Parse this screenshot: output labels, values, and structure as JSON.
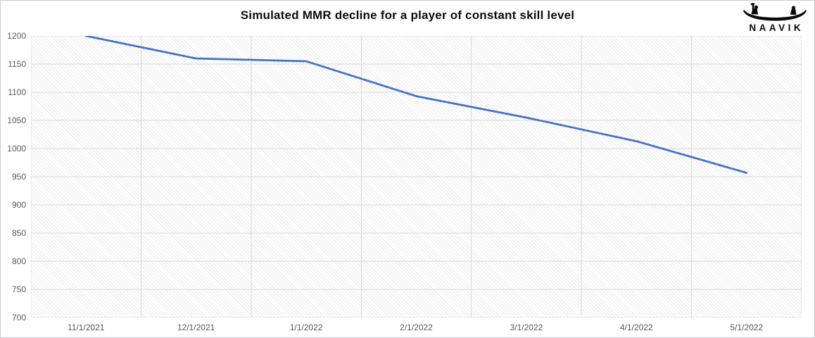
{
  "header": {
    "brand": "NAAVIK"
  },
  "chart_data": {
    "type": "line",
    "title": "Simulated MMR decline for a player of constant skill level",
    "x": [
      "11/1/2021",
      "12/1/2021",
      "1/1/2022",
      "2/1/2022",
      "3/1/2022",
      "4/1/2022",
      "5/1/2022"
    ],
    "series": [
      {
        "name": "Simulated MMR",
        "values": [
          1200,
          1160,
          1155,
          1093,
          1055,
          1013,
          957
        ]
      }
    ],
    "xlabel": "",
    "ylabel": "",
    "ylim": [
      700,
      1200
    ],
    "yticks": [
      1200,
      1150,
      1100,
      1050,
      1000,
      950,
      900,
      850,
      800,
      750,
      700
    ],
    "grid": "both",
    "legend_position": "none",
    "plot_background": "light-downward-diagonal-hatch",
    "colors": {
      "line": "#4472C4",
      "gridline": "#D9D9D9",
      "axis_label": "#595959",
      "title": "#0D0D0D",
      "hatch": "#E9E9E9"
    }
  }
}
